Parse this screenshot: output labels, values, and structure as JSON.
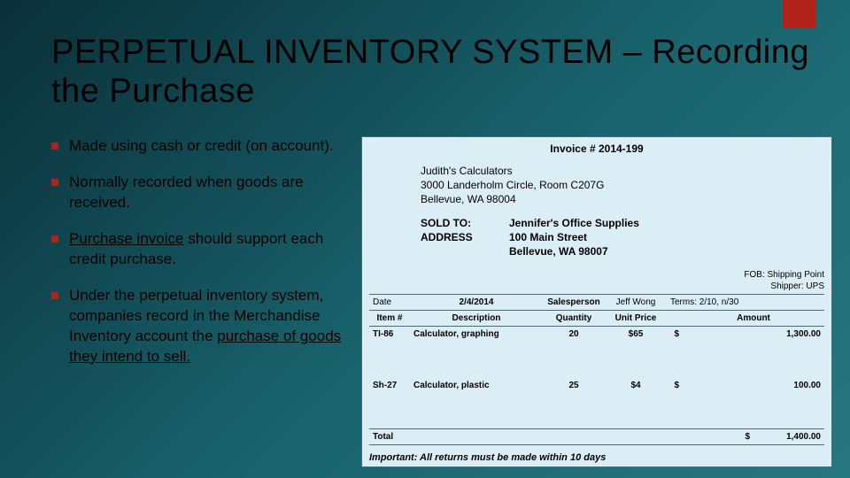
{
  "title": "PERPETUAL INVENTORY SYSTEM – Recording the Purchase",
  "bullets": [
    {
      "pre": "Made using cash or credit (on account).",
      "u": "",
      "post": ""
    },
    {
      "pre": "Normally recorded when goods are received.",
      "u": "",
      "post": ""
    },
    {
      "pre": "",
      "u": "Purchase invoice",
      "post": " should support each credit purchase."
    },
    {
      "pre": "Under the perpetual inventory system, companies record in the Merchandise Inventory account the ",
      "u": "purchase of goods they intend to sell.",
      "post": ""
    }
  ],
  "invoice": {
    "number_label": "Invoice # 2014-199",
    "seller": {
      "name": "Judith's Calculators",
      "addr1": "3000 Landerholm Circle, Room C207G",
      "addr2": "Bellevue, WA  98004"
    },
    "sold_to": {
      "label1": "SOLD TO:",
      "label2": "ADDRESS",
      "name": "Jennifer's Office Supplies",
      "addr1": "100 Main Street",
      "addr2": "Bellevue, WA  98007"
    },
    "fob": {
      "line1": "FOB: Shipping Point",
      "line2": "Shipper:  UPS"
    },
    "meta": {
      "date_label": "Date",
      "date": "2/4/2014",
      "sp_label": "Salesperson",
      "sp": "Jeff Wong",
      "terms_label": "Terms:",
      "terms": "2/10, n/30"
    },
    "headers": {
      "item": "Item #",
      "desc": "Description",
      "qty": "Quantity",
      "price": "Unit Price",
      "amount": "Amount"
    },
    "items": [
      {
        "item": "TI-86",
        "desc": "Calculator, graphing",
        "qty": "20",
        "price": "$65",
        "cur": "$",
        "amount": "1,300.00"
      },
      {
        "item": "Sh-27",
        "desc": "Calculator, plastic",
        "qty": "25",
        "price": "$4",
        "cur": "$",
        "amount": "100.00"
      }
    ],
    "total": {
      "label": "Total",
      "cur": "$",
      "amount": "1,400.00"
    },
    "important": "Important:  All returns must be made within 10 days"
  },
  "colors": {
    "accent": "#b02318",
    "invoice_bg": "#dceef5",
    "border": "#4a6a75"
  }
}
